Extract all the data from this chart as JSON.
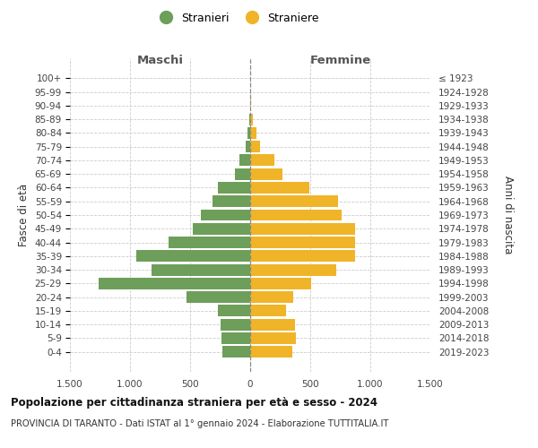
{
  "age_groups": [
    "0-4",
    "5-9",
    "10-14",
    "15-19",
    "20-24",
    "25-29",
    "30-34",
    "35-39",
    "40-44",
    "45-49",
    "50-54",
    "55-59",
    "60-64",
    "65-69",
    "70-74",
    "75-79",
    "80-84",
    "85-89",
    "90-94",
    "95-99",
    "100+"
  ],
  "birth_years": [
    "2019-2023",
    "2014-2018",
    "2009-2013",
    "2004-2008",
    "1999-2003",
    "1994-1998",
    "1989-1993",
    "1984-1988",
    "1979-1983",
    "1974-1978",
    "1969-1973",
    "1964-1968",
    "1959-1963",
    "1954-1958",
    "1949-1953",
    "1944-1948",
    "1939-1943",
    "1934-1938",
    "1929-1933",
    "1924-1928",
    "≤ 1923"
  ],
  "maschi": [
    230,
    240,
    250,
    265,
    530,
    1260,
    820,
    950,
    680,
    480,
    410,
    310,
    270,
    130,
    90,
    40,
    20,
    8,
    3,
    2,
    1
  ],
  "femmine": [
    350,
    380,
    370,
    295,
    355,
    510,
    720,
    870,
    870,
    870,
    760,
    730,
    490,
    270,
    200,
    80,
    50,
    20,
    8,
    3,
    2
  ],
  "maschi_color": "#6d9e5a",
  "femmine_color": "#f0b429",
  "title": "Popolazione per cittadinanza straniera per età e sesso - 2024",
  "subtitle": "PROVINCIA DI TARANTO - Dati ISTAT al 1° gennaio 2024 - Elaborazione TUTTITALIA.IT",
  "ylabel_left": "Fasce di età",
  "ylabel_right": "Anni di nascita",
  "xlabel_maschi": "Maschi",
  "xlabel_femmine": "Femmine",
  "legend_maschi": "Stranieri",
  "legend_femmine": "Straniere",
  "xlim": 1500,
  "xticks": [
    -1500,
    -1000,
    -500,
    0,
    500,
    1000,
    1500
  ],
  "xticklabels": [
    "1.500",
    "1.000",
    "500",
    "0",
    "500",
    "1.000",
    "1.500"
  ],
  "background_color": "#ffffff",
  "grid_color": "#cccccc",
  "bar_height": 0.85
}
